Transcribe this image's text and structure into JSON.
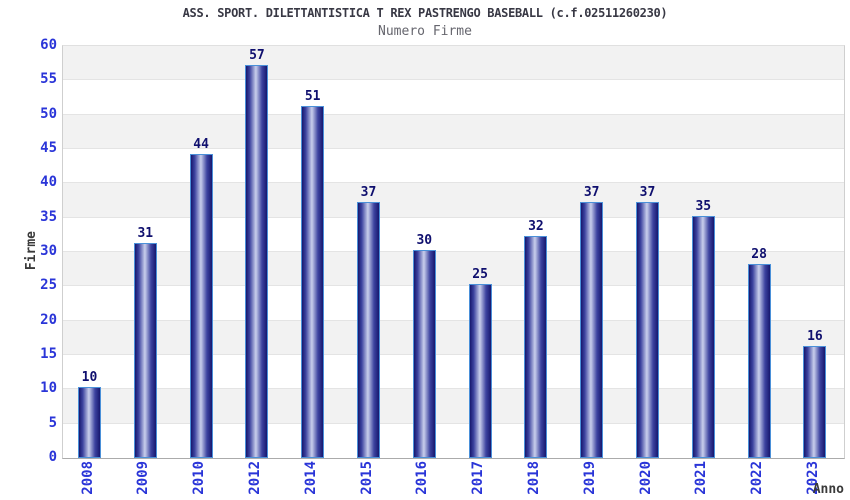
{
  "chart_data": {
    "type": "bar",
    "title": "ASS. SPORT. DILETTANTISTICA T REX PASTRENGO BASEBALL (c.f.02511260230)",
    "subtitle": "Numero Firme",
    "xlabel": "Anno",
    "ylabel": "Firme",
    "categories": [
      "2008",
      "2009",
      "2010",
      "2012",
      "2014",
      "2015",
      "2016",
      "2017",
      "2018",
      "2019",
      "2020",
      "2021",
      "2022",
      "2023"
    ],
    "values": [
      10,
      31,
      44,
      57,
      51,
      37,
      30,
      25,
      32,
      37,
      37,
      35,
      28,
      16
    ],
    "ylim": [
      0,
      60
    ],
    "ytick_step": 5,
    "grid": true,
    "legend_position": "none",
    "colors": {
      "tick_label": "#2a35d8",
      "value_label": "#0f0f6e",
      "bar_border": "#4a90d9",
      "bar_dark": "#17176e",
      "bar_mid": "#3d44a0",
      "bar_light": "#c9cfec",
      "band_gray": "#f2f2f2",
      "band_white": "#ffffff",
      "gridline": "#e4e4e4",
      "title": "#383844",
      "subtitle": "#66666e",
      "axis_title": "#3a3a3a"
    }
  }
}
